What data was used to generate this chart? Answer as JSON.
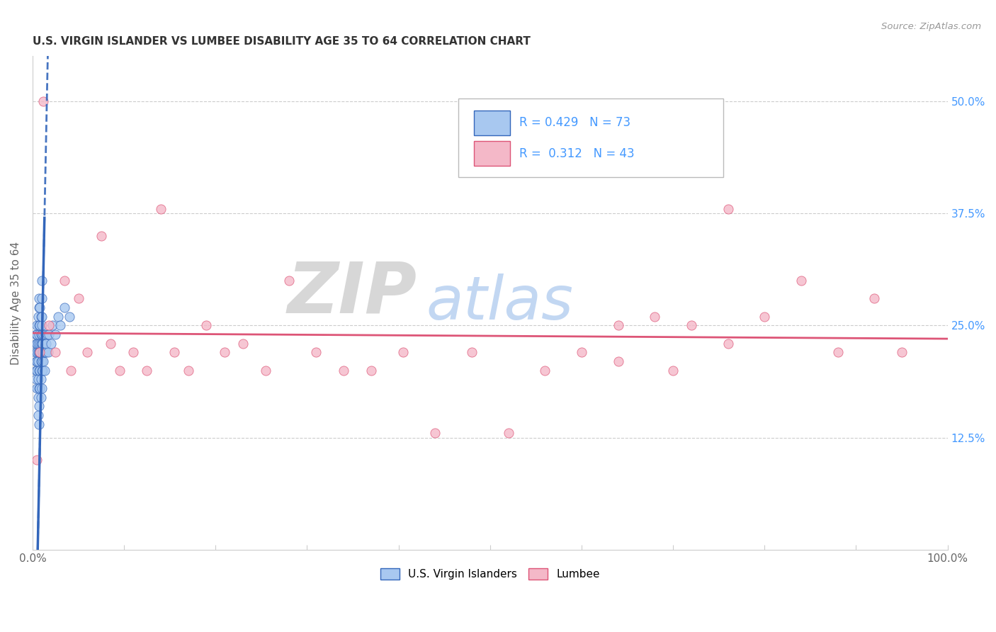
{
  "title": "U.S. VIRGIN ISLANDER VS LUMBEE DISABILITY AGE 35 TO 64 CORRELATION CHART",
  "source": "Source: ZipAtlas.com",
  "ylabel": "Disability Age 35 to 64",
  "legend_label1": "U.S. Virgin Islanders",
  "legend_label2": "Lumbee",
  "r1": 0.429,
  "n1": 73,
  "r2": 0.312,
  "n2": 43,
  "xlim": [
    0.0,
    1.0
  ],
  "ylim": [
    0.0,
    0.55
  ],
  "xtick_left_label": "0.0%",
  "xtick_right_label": "100.0%",
  "ytick_labels_right": [
    "12.5%",
    "25.0%",
    "37.5%",
    "50.0%"
  ],
  "ytick_vals": [
    0.125,
    0.25,
    0.375,
    0.5
  ],
  "color_blue": "#a8c8f0",
  "color_pink": "#f4b8c8",
  "line_blue": "#3366bb",
  "line_pink": "#dd5577",
  "background_color": "#ffffff",
  "grid_color": "#cccccc",
  "title_color": "#333333",
  "axis_color": "#666666",
  "right_tick_color": "#4499ff",
  "blue_x": [
    0.003,
    0.004,
    0.004,
    0.004,
    0.004,
    0.004,
    0.005,
    0.005,
    0.005,
    0.005,
    0.005,
    0.005,
    0.005,
    0.006,
    0.006,
    0.006,
    0.006,
    0.006,
    0.006,
    0.006,
    0.007,
    0.007,
    0.007,
    0.007,
    0.007,
    0.007,
    0.007,
    0.007,
    0.007,
    0.008,
    0.008,
    0.008,
    0.008,
    0.008,
    0.008,
    0.009,
    0.009,
    0.009,
    0.009,
    0.009,
    0.009,
    0.01,
    0.01,
    0.01,
    0.01,
    0.01,
    0.01,
    0.01,
    0.01,
    0.01,
    0.01,
    0.011,
    0.011,
    0.011,
    0.012,
    0.012,
    0.012,
    0.013,
    0.013,
    0.014,
    0.014,
    0.015,
    0.015,
    0.016,
    0.017,
    0.018,
    0.02,
    0.022,
    0.025,
    0.028,
    0.03,
    0.035,
    0.04
  ],
  "blue_y": [
    0.22,
    0.2,
    0.21,
    0.23,
    0.24,
    0.19,
    0.18,
    0.2,
    0.21,
    0.22,
    0.23,
    0.24,
    0.25,
    0.15,
    0.17,
    0.19,
    0.21,
    0.22,
    0.23,
    0.26,
    0.14,
    0.16,
    0.18,
    0.2,
    0.22,
    0.24,
    0.25,
    0.27,
    0.28,
    0.18,
    0.2,
    0.22,
    0.23,
    0.25,
    0.27,
    0.17,
    0.19,
    0.21,
    0.23,
    0.24,
    0.26,
    0.18,
    0.2,
    0.21,
    0.22,
    0.23,
    0.24,
    0.25,
    0.26,
    0.28,
    0.3,
    0.2,
    0.22,
    0.23,
    0.21,
    0.22,
    0.24,
    0.2,
    0.22,
    0.22,
    0.24,
    0.22,
    0.23,
    0.24,
    0.22,
    0.24,
    0.23,
    0.25,
    0.24,
    0.26,
    0.25,
    0.27,
    0.26
  ],
  "pink_x": [
    0.005,
    0.008,
    0.012,
    0.018,
    0.025,
    0.035,
    0.042,
    0.05,
    0.06,
    0.075,
    0.085,
    0.095,
    0.11,
    0.125,
    0.14,
    0.155,
    0.17,
    0.19,
    0.21,
    0.23,
    0.255,
    0.28,
    0.31,
    0.34,
    0.37,
    0.405,
    0.44,
    0.48,
    0.52,
    0.56,
    0.6,
    0.64,
    0.68,
    0.72,
    0.76,
    0.8,
    0.84,
    0.88,
    0.92,
    0.95,
    0.64,
    0.7,
    0.76
  ],
  "pink_y": [
    0.1,
    0.22,
    0.5,
    0.25,
    0.22,
    0.3,
    0.2,
    0.28,
    0.22,
    0.35,
    0.23,
    0.2,
    0.22,
    0.2,
    0.38,
    0.22,
    0.2,
    0.25,
    0.22,
    0.23,
    0.2,
    0.3,
    0.22,
    0.2,
    0.2,
    0.22,
    0.13,
    0.22,
    0.13,
    0.2,
    0.22,
    0.25,
    0.26,
    0.25,
    0.38,
    0.26,
    0.3,
    0.22,
    0.28,
    0.22,
    0.21,
    0.2,
    0.23
  ]
}
